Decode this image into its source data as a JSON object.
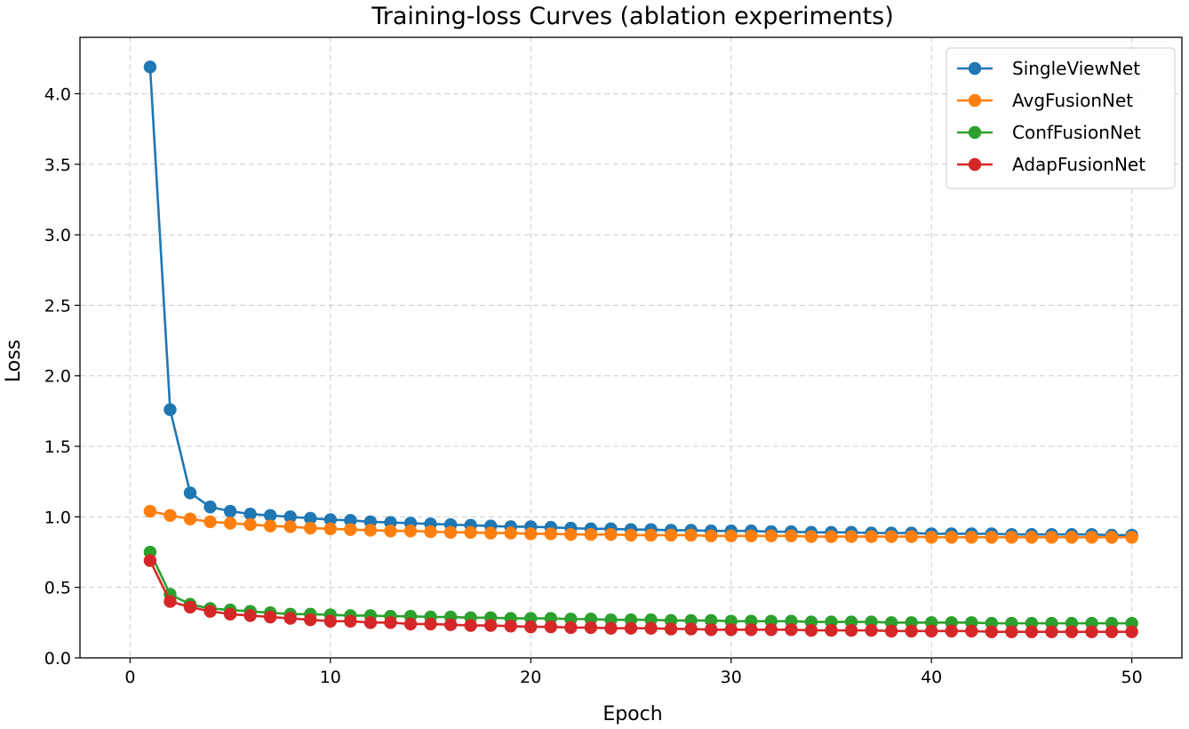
{
  "chart_data": {
    "type": "line",
    "title": "Training-loss Curves (ablation experiments)",
    "xlabel": "Epoch",
    "ylabel": "Loss",
    "xlim": [
      -2.5,
      52.5
    ],
    "ylim": [
      0.0,
      4.4
    ],
    "xticks": [
      0,
      10,
      20,
      30,
      40,
      50
    ],
    "yticks": [
      0.0,
      0.5,
      1.0,
      1.5,
      2.0,
      2.5,
      3.0,
      3.5,
      4.0
    ],
    "xtick_labels": [
      "0",
      "10",
      "20",
      "30",
      "40",
      "50"
    ],
    "ytick_labels": [
      "0.0",
      "0.5",
      "1.0",
      "1.5",
      "2.0",
      "2.5",
      "3.0",
      "3.5",
      "4.0"
    ],
    "grid": true,
    "legend_position": "top-right",
    "x": [
      1,
      2,
      3,
      4,
      5,
      6,
      7,
      8,
      9,
      10,
      11,
      12,
      13,
      14,
      15,
      16,
      17,
      18,
      19,
      20,
      21,
      22,
      23,
      24,
      25,
      26,
      27,
      28,
      29,
      30,
      31,
      32,
      33,
      34,
      35,
      36,
      37,
      38,
      39,
      40,
      41,
      42,
      43,
      44,
      45,
      46,
      47,
      48,
      49,
      50
    ],
    "series": [
      {
        "name": "SingleViewNet",
        "color": "#1f77b4",
        "values": [
          4.19,
          1.76,
          1.17,
          1.07,
          1.04,
          1.02,
          1.01,
          1.0,
          0.99,
          0.98,
          0.975,
          0.965,
          0.96,
          0.955,
          0.95,
          0.945,
          0.94,
          0.935,
          0.93,
          0.93,
          0.925,
          0.92,
          0.915,
          0.915,
          0.91,
          0.91,
          0.905,
          0.905,
          0.9,
          0.9,
          0.9,
          0.895,
          0.895,
          0.89,
          0.89,
          0.89,
          0.885,
          0.885,
          0.885,
          0.88,
          0.88,
          0.88,
          0.88,
          0.875,
          0.875,
          0.875,
          0.875,
          0.875,
          0.87,
          0.87
        ]
      },
      {
        "name": "AvgFusionNet",
        "color": "#ff7f0e",
        "values": [
          1.04,
          1.01,
          0.985,
          0.965,
          0.955,
          0.945,
          0.935,
          0.93,
          0.92,
          0.915,
          0.91,
          0.905,
          0.9,
          0.9,
          0.895,
          0.89,
          0.89,
          0.885,
          0.885,
          0.88,
          0.88,
          0.875,
          0.875,
          0.875,
          0.87,
          0.87,
          0.87,
          0.87,
          0.865,
          0.865,
          0.865,
          0.865,
          0.865,
          0.86,
          0.86,
          0.86,
          0.86,
          0.86,
          0.86,
          0.855,
          0.855,
          0.855,
          0.855,
          0.855,
          0.855,
          0.855,
          0.855,
          0.855,
          0.855,
          0.855
        ]
      },
      {
        "name": "ConfFusionNet",
        "color": "#2ca02c",
        "values": [
          0.75,
          0.45,
          0.38,
          0.35,
          0.34,
          0.33,
          0.32,
          0.31,
          0.31,
          0.305,
          0.3,
          0.3,
          0.295,
          0.295,
          0.29,
          0.29,
          0.285,
          0.285,
          0.28,
          0.28,
          0.28,
          0.275,
          0.275,
          0.27,
          0.27,
          0.27,
          0.265,
          0.265,
          0.265,
          0.26,
          0.26,
          0.26,
          0.26,
          0.255,
          0.255,
          0.255,
          0.255,
          0.25,
          0.25,
          0.25,
          0.25,
          0.25,
          0.245,
          0.245,
          0.245,
          0.245,
          0.245,
          0.245,
          0.245,
          0.245
        ]
      },
      {
        "name": "AdapFusionNet",
        "color": "#d62728",
        "values": [
          0.69,
          0.4,
          0.36,
          0.33,
          0.31,
          0.3,
          0.29,
          0.28,
          0.27,
          0.26,
          0.26,
          0.25,
          0.25,
          0.24,
          0.24,
          0.235,
          0.23,
          0.23,
          0.225,
          0.22,
          0.22,
          0.215,
          0.215,
          0.21,
          0.21,
          0.21,
          0.205,
          0.205,
          0.2,
          0.2,
          0.2,
          0.2,
          0.2,
          0.195,
          0.195,
          0.195,
          0.195,
          0.19,
          0.19,
          0.19,
          0.19,
          0.19,
          0.185,
          0.185,
          0.185,
          0.185,
          0.185,
          0.185,
          0.185,
          0.185
        ]
      }
    ]
  }
}
